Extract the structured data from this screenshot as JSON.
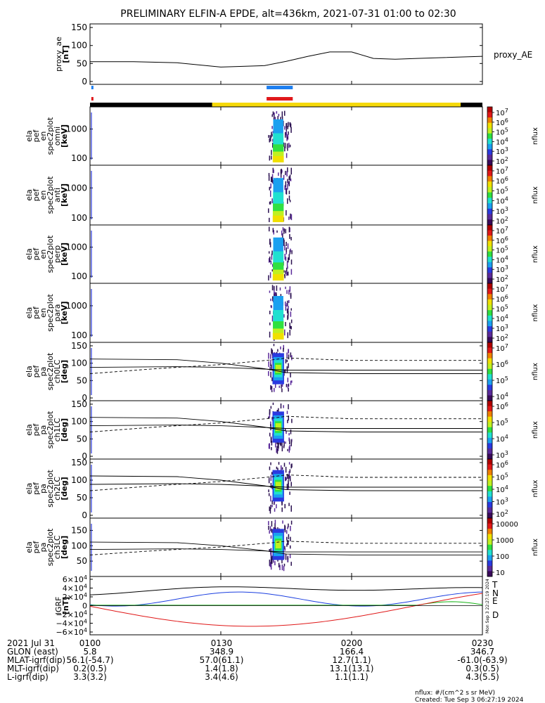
{
  "title": "PRELIMINARY ELFIN-A EPDE, alt=436km, 2021-07-31 01:00 to 02:30",
  "colors": {
    "blue_bar": "#1e7ff0",
    "red_bar": "#e0191c",
    "yellow_bar": "#f5d90a",
    "black_bar": "#000000",
    "T": "#000000",
    "N": "#1a3ee0",
    "E": "#18b418",
    "D": "#e01818"
  },
  "panels": [
    {
      "ylabel": [
        "proxy_ae",
        "[nT]"
      ],
      "yticks": [
        "150",
        "100",
        "50",
        "0"
      ],
      "right_label": "proxy_AE"
    },
    {
      "ylabel": [
        "ela",
        "pef",
        "en",
        "spec2plot",
        "omni",
        "[keV]"
      ],
      "yticks": [
        "1000",
        "100"
      ],
      "cb_ticks": [
        "10^7",
        "10^6",
        "10^5",
        "10^4",
        "10^3",
        "10^2"
      ],
      "cb_label": "nflux"
    },
    {
      "ylabel": [
        "ela",
        "pef",
        "en",
        "spec2plot",
        "anti",
        "[keV]"
      ],
      "yticks": [
        "1000",
        "100"
      ],
      "cb_ticks": [
        "10^7",
        "10^6",
        "10^5",
        "10^4",
        "10^3",
        "10^2"
      ],
      "cb_label": "nflux"
    },
    {
      "ylabel": [
        "ela",
        "pef",
        "en",
        "spec2plot",
        "perp",
        "[keV]"
      ],
      "yticks": [
        "1000",
        "100"
      ],
      "cb_ticks": [
        "10^7",
        "10^6",
        "10^5",
        "10^4",
        "10^3",
        "10^2"
      ],
      "cb_label": "nflux"
    },
    {
      "ylabel": [
        "ela",
        "pef",
        "en",
        "spec2plot",
        "para",
        "[keV]"
      ],
      "yticks": [
        "1000",
        "100"
      ],
      "cb_ticks": [
        "10^7",
        "10^6",
        "10^5",
        "10^4",
        "10^3",
        "10^2"
      ],
      "cb_label": "nflux"
    },
    {
      "ylabel": [
        "ela",
        "pef",
        "pa",
        "spec2plot",
        "ch0LC",
        "[deg]"
      ],
      "yticks": [
        "150",
        "100",
        "50",
        "0"
      ],
      "cb_ticks": [
        "10^7",
        "10^6",
        "10^5",
        "10^4"
      ],
      "cb_label": "nflux"
    },
    {
      "ylabel": [
        "ela",
        "pef",
        "pa",
        "spec2plot",
        "ch1LC",
        "[deg]"
      ],
      "yticks": [
        "150",
        "100",
        "50",
        "0"
      ],
      "cb_ticks": [
        "10^6",
        "10^5",
        "10^4",
        "10^3"
      ],
      "cb_label": "nflux"
    },
    {
      "ylabel": [
        "ela",
        "pef",
        "pa",
        "spec2plot",
        "ch2LC",
        "[deg]"
      ],
      "yticks": [
        "150",
        "100",
        "50",
        "0"
      ],
      "cb_ticks": [
        "10^6",
        "10^5",
        "10^4",
        "10^3",
        "10^2"
      ],
      "cb_label": "nflux"
    },
    {
      "ylabel": [
        "ela",
        "pef",
        "pa",
        "spec2plot",
        "ch3LC",
        "[deg]"
      ],
      "yticks": [
        "150",
        "100",
        "50"
      ],
      "cb_ticks": [
        "10000",
        "1000",
        "100",
        "10"
      ],
      "cb_label": "nflux"
    },
    {
      "ylabel": [
        "IGRF",
        "[nT]"
      ],
      "yticks": [
        "6×10^4",
        "4×10^4",
        "2×10^4",
        "0",
        "−2×10^4",
        "−4×10^4",
        "−6×10^4"
      ],
      "legend": [
        "T",
        "N",
        "E",
        "D"
      ]
    }
  ],
  "side_stamp": "Mon Sep  3 22:27:19 2024",
  "footer": {
    "rows": [
      [
        "2021 Jul 31",
        "0100",
        "0130",
        "0200",
        "0230"
      ],
      [
        "GLON (east)",
        "5.8",
        "348.9",
        "166.4",
        "346.7"
      ],
      [
        "MLAT-igrf(dip)",
        "56.1(-54.7)",
        "57.0(61.1)",
        "12.7(1.1)",
        "-61.0(-63.9)"
      ],
      [
        "MLT-igrf(dip)",
        "0.2(0.5)",
        "1.4(1.8)",
        "13.1(13.1)",
        "0.3(0.5)"
      ],
      [
        "L-igrf(dip)",
        "3.3(3.2)",
        "3.4(4.6)",
        "1.1(1.1)",
        "4.3(5.5)"
      ]
    ],
    "units_note": "nflux: #/(cm^2 s sr MeV)",
    "created": "Created: Tue Sep  3 06:27:19 2024"
  },
  "chart_data": {
    "type": "line",
    "title": "PRELIMINARY ELFIN-A EPDE, alt=436km, 2021-07-31 01:00 to 02:30",
    "x_minutes": [
      0,
      10,
      20,
      30,
      40,
      45,
      50,
      55,
      60,
      65,
      70,
      75,
      80,
      90
    ],
    "series": [
      {
        "name": "proxy_AE",
        "values": [
          55,
          55,
          52,
          40,
          44,
          56,
          70,
          82,
          82,
          64,
          62,
          64,
          66,
          70
        ]
      }
    ],
    "ylim": [
      0,
      150
    ],
    "igrf_series": [
      "T",
      "N",
      "E",
      "D"
    ]
  }
}
